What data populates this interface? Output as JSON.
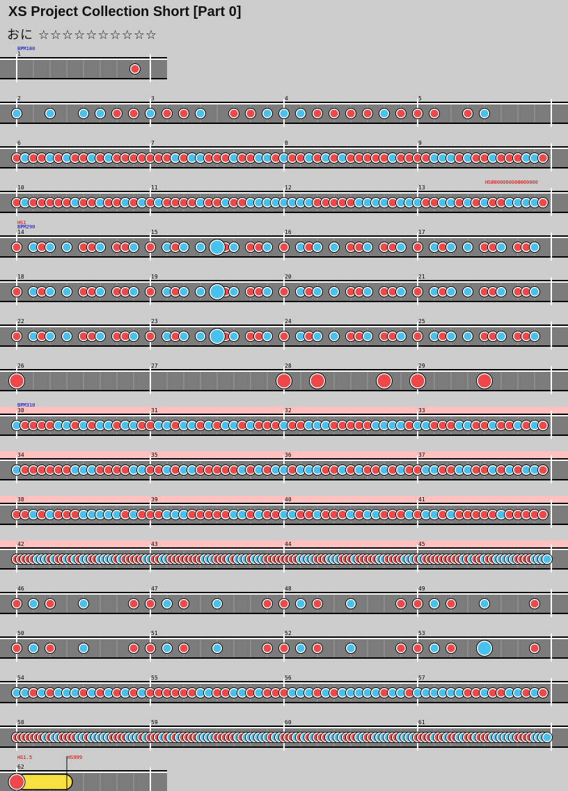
{
  "header": {
    "title": "XS Project Collection Short [Part 0]",
    "difficulty_label": "おに",
    "stars": "☆☆☆☆☆☆☆☆☆☆"
  },
  "colors": {
    "don": "#f04848",
    "ka": "#48c0f0",
    "roll": "#f8e040",
    "lane": "#7c7c7c",
    "pink_band": "#ffc0c0"
  },
  "rows": [
    {
      "measures": [
        "1"
      ],
      "marks": [
        {
          "m": 0,
          "label": "BPM180",
          "color": "#0000cc"
        }
      ],
      "width_measures": 1,
      "notes": [
        {
          "p": 0.885,
          "t": "d",
          "big": false
        }
      ]
    },
    {
      "measures": [
        "2",
        "3",
        "4",
        "5"
      ],
      "notes": "dpat:row2"
    },
    {
      "measures": [
        "6",
        "7",
        "8",
        "9"
      ],
      "notes": "dpat:row3"
    },
    {
      "measures": [
        "10",
        "11",
        "12",
        "13"
      ],
      "marks": [
        {
          "m": 3,
          "label": "HS0000000000000000",
          "color": "#dd0000",
          "offset": 0.5
        }
      ],
      "notes": "dpat:row4"
    },
    {
      "measures": [
        "14",
        "15",
        "16",
        "17"
      ],
      "marks": [
        {
          "m": 0,
          "label": "HS1",
          "color": "#dd0000"
        },
        {
          "m": 0,
          "label": "BPM290",
          "color": "#0000cc",
          "second": true
        }
      ],
      "notes": "dpat:row5"
    },
    {
      "measures": [
        "18",
        "19",
        "20",
        "21"
      ],
      "notes": "dpat:row6"
    },
    {
      "measures": [
        "22",
        "23",
        "24",
        "25"
      ],
      "notes": "dpat:row7"
    },
    {
      "measures": [
        "26",
        "27",
        "28",
        "29"
      ],
      "notes": "dpat:row8"
    },
    {
      "measures": [
        "30",
        "31",
        "32",
        "33"
      ],
      "pink": true,
      "marks": [
        {
          "m": 0,
          "label": "BPM310",
          "color": "#0000cc"
        }
      ],
      "notes": "dpat:dense"
    },
    {
      "measures": [
        "34",
        "35",
        "36",
        "37"
      ],
      "pink": true,
      "notes": "dpat:dense"
    },
    {
      "measures": [
        "38",
        "39",
        "40",
        "41"
      ],
      "pink": true,
      "notes": "dpat:dense"
    },
    {
      "measures": [
        "42",
        "43",
        "44",
        "45"
      ],
      "pink": true,
      "notes": "dpat:verydense"
    },
    {
      "measures": [
        "46",
        "47",
        "48",
        "49"
      ],
      "notes": "dpat:row13"
    },
    {
      "measures": [
        "50",
        "51",
        "52",
        "53"
      ],
      "notes": "dpat:row14"
    },
    {
      "measures": [
        "54",
        "55",
        "56",
        "57"
      ],
      "notes": "dpat:dense"
    },
    {
      "measures": [
        "58",
        "59",
        "60",
        "61"
      ],
      "notes": "dpat:verydense"
    },
    {
      "measures": [
        "62"
      ],
      "width_measures": 1,
      "marks": [
        {
          "m": 0,
          "label": "HS1.5",
          "color": "#dd0000"
        },
        {
          "m": 0,
          "label": "HS999",
          "color": "#dd0000",
          "offset": 0.375
        }
      ],
      "notes": "roll"
    }
  ]
}
